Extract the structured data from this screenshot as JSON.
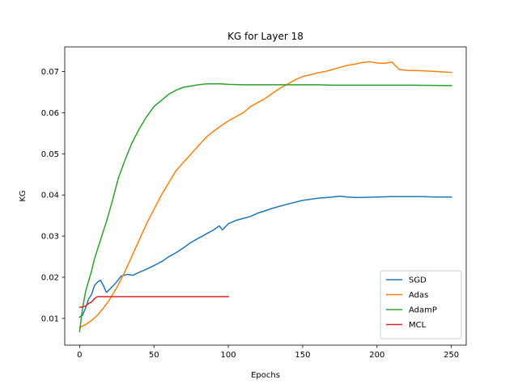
{
  "chart_data": {
    "type": "line",
    "title": "KG for Layer 18",
    "xlabel": "Epochs",
    "ylabel": "KG",
    "xlim": [
      -10,
      260
    ],
    "ylim": [
      0.0035,
      0.076
    ],
    "xticks": [
      0,
      50,
      100,
      150,
      200,
      250
    ],
    "yticks": [
      0.01,
      0.02,
      0.03,
      0.04,
      0.05,
      0.06,
      0.07
    ],
    "ytick_labels": [
      "0.01",
      "0.02",
      "0.03",
      "0.04",
      "0.05",
      "0.06",
      "0.07"
    ],
    "grid": false,
    "legend_position": "lower-right",
    "series": [
      {
        "name": "SGD",
        "color": "#1f77b4",
        "x": [
          0,
          2,
          4,
          6,
          8,
          10,
          12,
          14,
          16,
          18,
          20,
          24,
          28,
          32,
          36,
          40,
          44,
          48,
          52,
          56,
          60,
          65,
          70,
          75,
          80,
          85,
          90,
          94,
          96,
          100,
          105,
          110,
          115,
          120,
          130,
          140,
          150,
          160,
          170,
          175,
          180,
          185,
          190,
          200,
          210,
          220,
          230,
          240,
          250
        ],
        "y": [
          0.0103,
          0.0108,
          0.0125,
          0.0147,
          0.0158,
          0.018,
          0.0188,
          0.0193,
          0.018,
          0.0163,
          0.017,
          0.0185,
          0.0203,
          0.0207,
          0.0205,
          0.0212,
          0.0218,
          0.0225,
          0.0232,
          0.024,
          0.025,
          0.026,
          0.0272,
          0.0285,
          0.0295,
          0.0305,
          0.0315,
          0.0325,
          0.0315,
          0.033,
          0.0338,
          0.0343,
          0.0348,
          0.0356,
          0.0368,
          0.0378,
          0.0387,
          0.0392,
          0.0395,
          0.0397,
          0.0395,
          0.0394,
          0.0394,
          0.0395,
          0.0396,
          0.0396,
          0.0396,
          0.0395,
          0.0395
        ]
      },
      {
        "name": "Adas",
        "color": "#ff7f0e",
        "x": [
          0,
          4,
          8,
          12,
          16,
          20,
          25,
          30,
          35,
          40,
          45,
          50,
          55,
          60,
          65,
          70,
          75,
          80,
          85,
          90,
          95,
          100,
          105,
          110,
          115,
          120,
          125,
          130,
          135,
          140,
          145,
          150,
          155,
          160,
          165,
          170,
          175,
          180,
          185,
          190,
          195,
          200,
          205,
          210,
          215,
          220,
          230,
          240,
          250
        ],
        "y": [
          0.0078,
          0.0085,
          0.0095,
          0.0108,
          0.0125,
          0.0145,
          0.0175,
          0.021,
          0.025,
          0.029,
          0.033,
          0.0365,
          0.04,
          0.043,
          0.046,
          0.048,
          0.05,
          0.052,
          0.054,
          0.0555,
          0.0568,
          0.058,
          0.059,
          0.06,
          0.0615,
          0.0625,
          0.0635,
          0.0648,
          0.066,
          0.067,
          0.068,
          0.0688,
          0.0692,
          0.0697,
          0.07,
          0.0705,
          0.071,
          0.0715,
          0.0718,
          0.0722,
          0.0724,
          0.0721,
          0.072,
          0.0723,
          0.0705,
          0.0703,
          0.0702,
          0.07,
          0.0698
        ]
      },
      {
        "name": "AdamP",
        "color": "#2ca02c",
        "x": [
          0,
          2,
          4,
          6,
          8,
          10,
          14,
          18,
          22,
          26,
          30,
          35,
          40,
          45,
          50,
          55,
          60,
          65,
          70,
          75,
          80,
          85,
          90,
          95,
          100,
          110,
          120,
          130,
          140,
          150,
          160,
          170,
          180,
          200,
          220,
          250
        ],
        "y": [
          0.0068,
          0.0125,
          0.0165,
          0.019,
          0.0215,
          0.0245,
          0.029,
          0.0335,
          0.0385,
          0.044,
          0.048,
          0.0525,
          0.056,
          0.059,
          0.0615,
          0.063,
          0.0645,
          0.0655,
          0.0662,
          0.0665,
          0.0668,
          0.067,
          0.067,
          0.067,
          0.0669,
          0.0668,
          0.0668,
          0.0668,
          0.0668,
          0.0668,
          0.0668,
          0.0667,
          0.0667,
          0.0667,
          0.0667,
          0.0666
        ]
      },
      {
        "name": "MCL",
        "color": "#d62728",
        "x": [
          0,
          2,
          4,
          6,
          8,
          10,
          12,
          20,
          40,
          60,
          80,
          100
        ],
        "y": [
          0.0127,
          0.0128,
          0.013,
          0.0136,
          0.014,
          0.0148,
          0.0153,
          0.0153,
          0.0153,
          0.0153,
          0.0153,
          0.0153
        ]
      }
    ]
  }
}
